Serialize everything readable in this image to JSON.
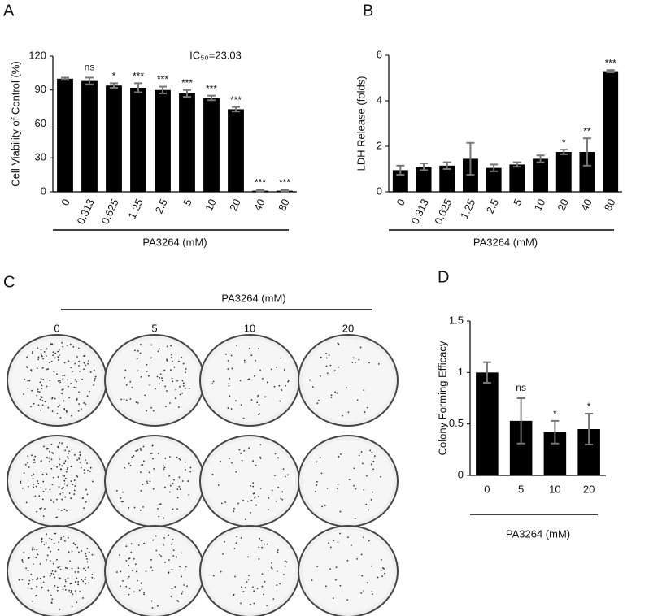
{
  "chart_data": [
    {
      "type": "bar",
      "panel": "A",
      "ylabel": "Cell Viability of Control (%)",
      "xlabel": "PA3264 (mM)",
      "annotation": "IC₅₀=23.03",
      "categories": [
        "0",
        "0.313",
        "0.625",
        "1.25",
        "2.5",
        "5",
        "10",
        "20",
        "40",
        "80"
      ],
      "values": [
        100,
        98,
        94,
        92,
        90,
        87,
        83,
        73,
        1,
        1
      ],
      "errors": [
        1,
        3,
        2,
        4,
        3,
        3,
        2,
        2,
        1,
        1
      ],
      "significance": [
        null,
        "ns",
        "*",
        "***",
        "***",
        "***",
        "***",
        "***",
        "***",
        "***"
      ],
      "color": "#000000",
      "error_color": "#777777",
      "ylim": [
        0,
        120
      ],
      "yticks": [
        0,
        30,
        60,
        90,
        120
      ]
    },
    {
      "type": "bar",
      "panel": "B",
      "ylabel": "LDH Release (folds)",
      "xlabel": "PA3264 (mM)",
      "categories": [
        "0",
        "0.313",
        "0.625",
        "1.25",
        "2.5",
        "5",
        "10",
        "20",
        "40",
        "80"
      ],
      "values": [
        0.95,
        1.1,
        1.15,
        1.45,
        1.05,
        1.2,
        1.45,
        1.75,
        1.75,
        5.3
      ],
      "errors": [
        0.2,
        0.15,
        0.15,
        0.7,
        0.15,
        0.1,
        0.15,
        0.1,
        0.6,
        0.05
      ],
      "significance": [
        null,
        null,
        null,
        null,
        null,
        null,
        null,
        "*",
        "**",
        "***"
      ],
      "color": "#000000",
      "error_color": "#777777",
      "ylim": [
        0,
        6
      ],
      "yticks": [
        0,
        2,
        4,
        6
      ]
    },
    {
      "type": "bar",
      "panel": "D",
      "ylabel": "Colony Forming Efficacy",
      "xlabel": "PA3264 (mM)",
      "categories": [
        "0",
        "5",
        "10",
        "20"
      ],
      "values": [
        1,
        0.53,
        0.42,
        0.45
      ],
      "errors": [
        0.1,
        0.22,
        0.11,
        0.15
      ],
      "significance": [
        null,
        "ns",
        "*",
        "*"
      ],
      "color": "#000000",
      "error_color": "#777777",
      "ylim": [
        0,
        1.5
      ],
      "yticks": [
        0,
        0.5,
        1,
        1.5
      ]
    }
  ],
  "colony_panel": {
    "panel": "C",
    "xlabel": "PA3264 (mM)",
    "columns": [
      "0",
      "5",
      "10",
      "20"
    ]
  }
}
